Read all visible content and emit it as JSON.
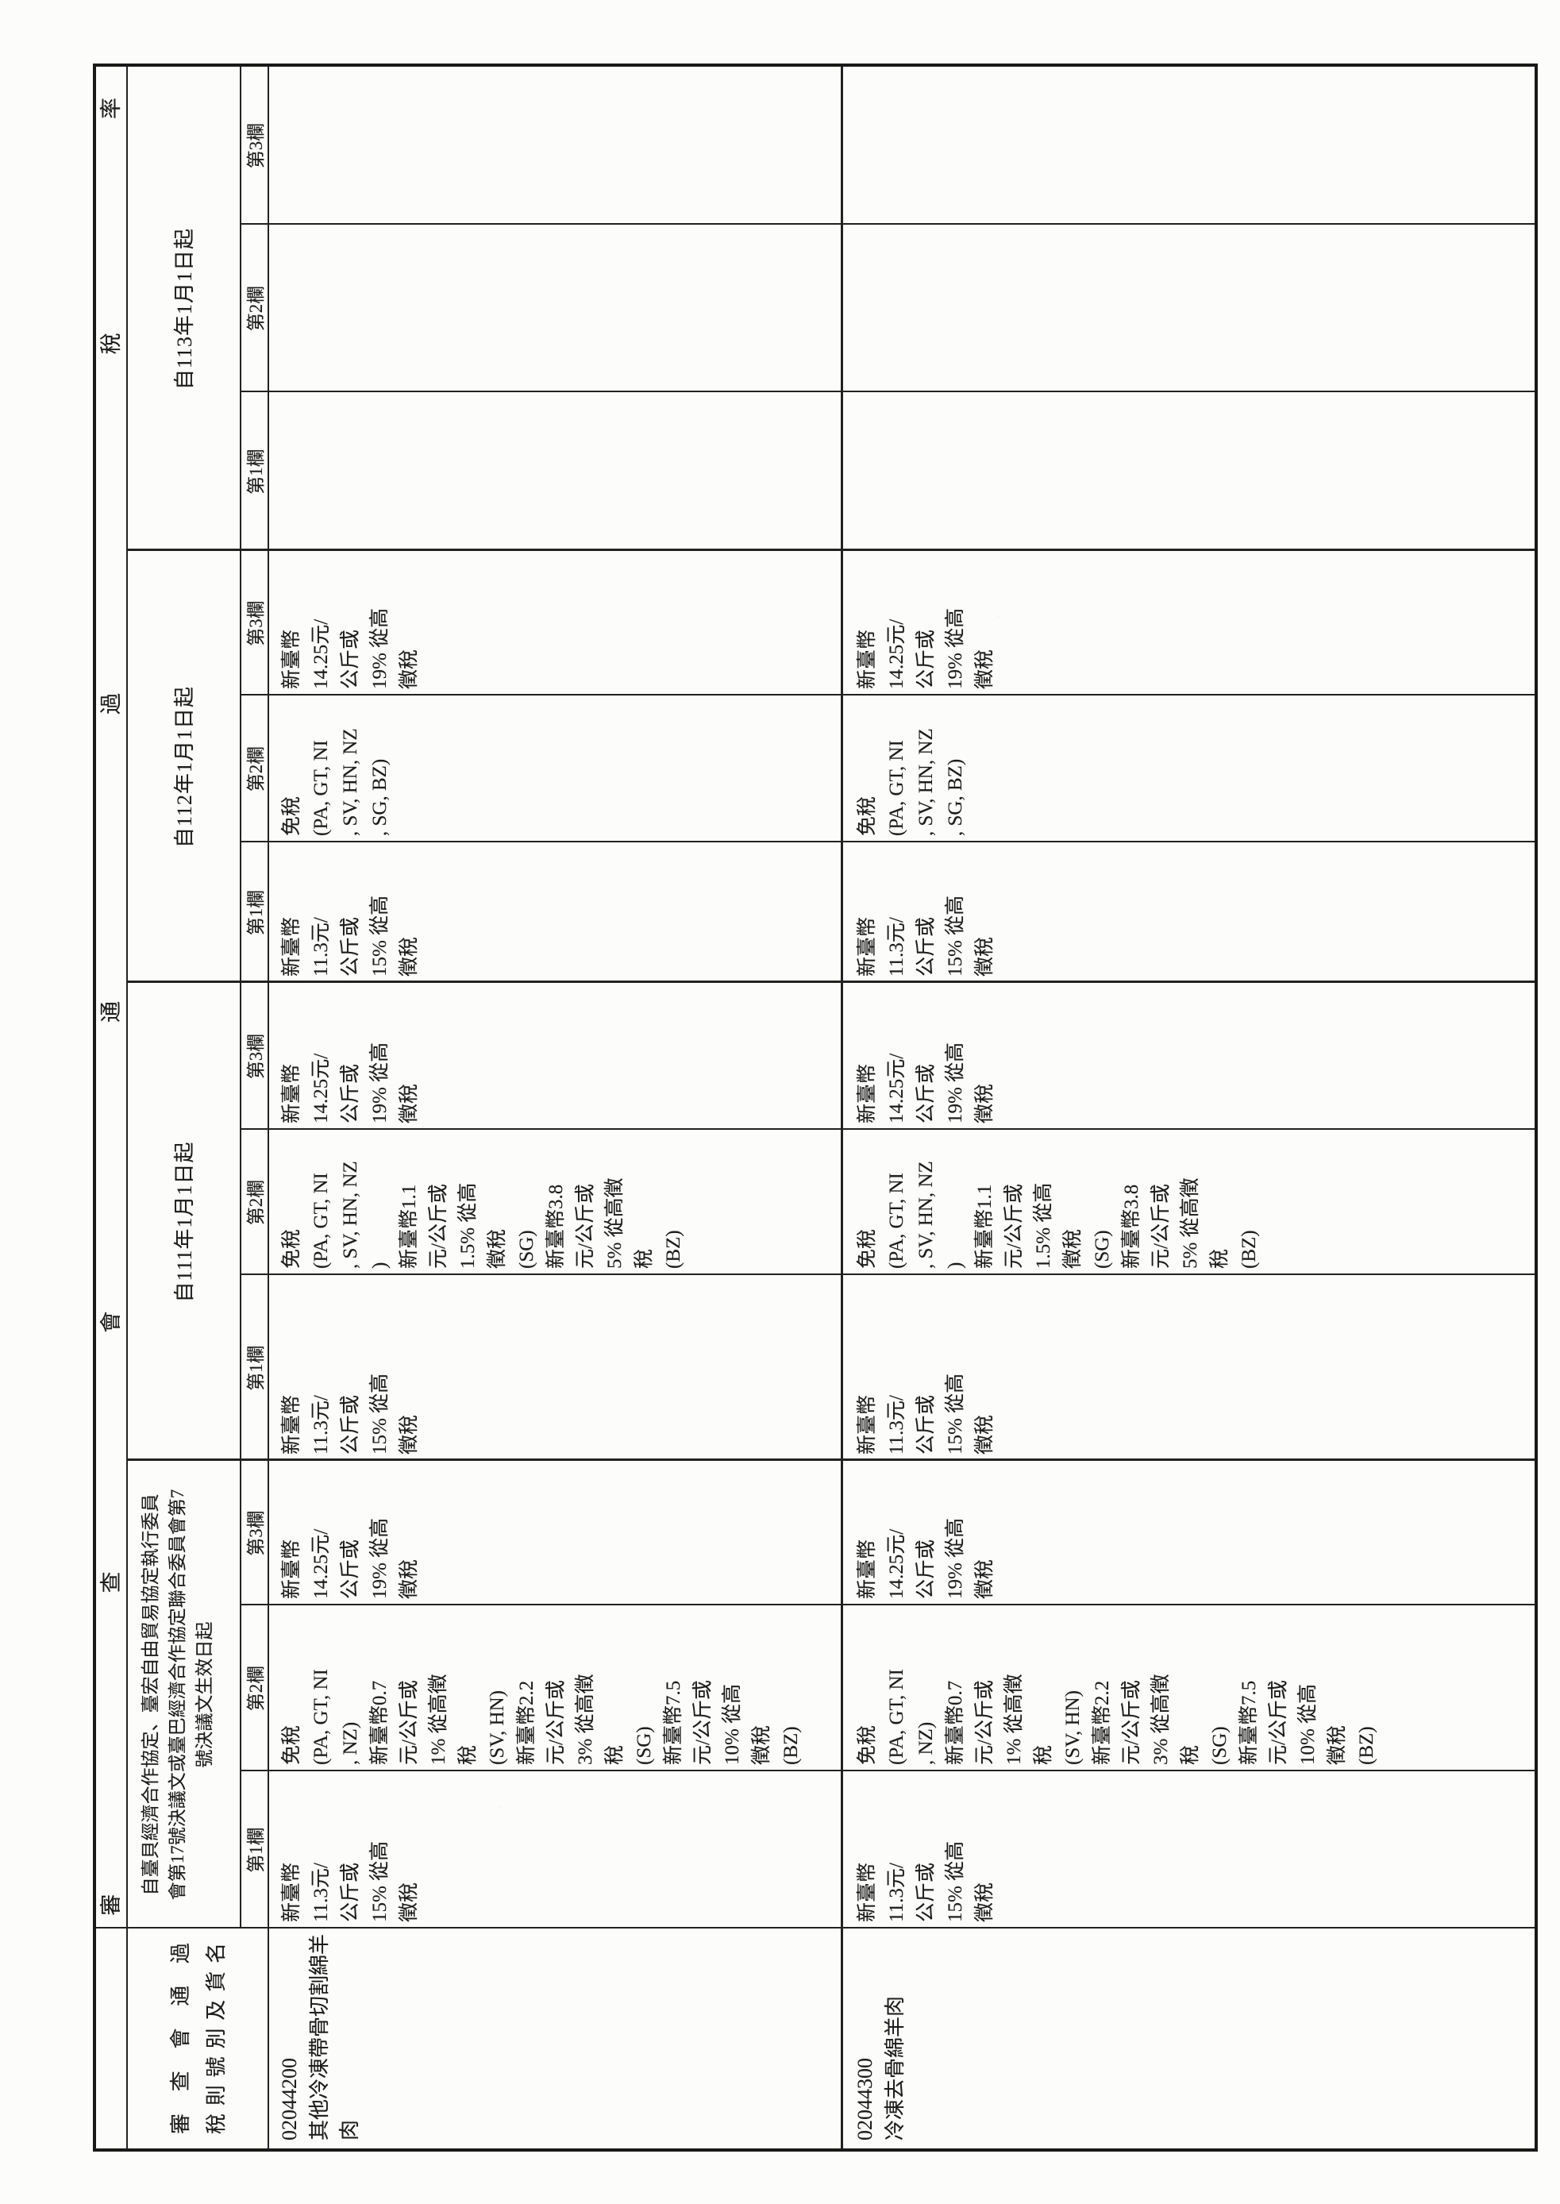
{
  "banner": {
    "chars": [
      "審",
      "查",
      "會",
      "通",
      "過",
      "稅",
      "率"
    ]
  },
  "goods_header": {
    "line1": "審查會通過",
    "line2": "稅則號別及貨名"
  },
  "note": [
    "自臺貝經濟合作協定、臺宏自由貿易協定執行委員",
    "會第17號決議文或臺巴經濟合作協定聯合委員會第7",
    "號決議文生效日起"
  ],
  "year_headers": {
    "y111": "自111年1月1日起",
    "y112": "自112年1月1日起",
    "y113": "自113年1月1日起"
  },
  "column_labels": {
    "c1": "第1欄",
    "c2": "第2欄",
    "c3": "第3欄"
  },
  "rates": {
    "standard_col1": [
      "新臺幣",
      "11.3元/",
      "公斤或",
      "15% 從高",
      "徵稅"
    ],
    "standard_col3": [
      "新臺幣",
      "14.25元/",
      "公斤或",
      "19% 從高",
      "徵稅"
    ],
    "free_agreement_col2": [
      "免稅",
      "(PA, GT, NI",
      ", NZ)",
      "新臺幣0.7",
      "元/公斤或",
      "1% 從高徵",
      "稅",
      "(SV, HN)",
      "新臺幣2.2",
      "元/公斤或",
      "3% 從高徵",
      "稅",
      "(SG)",
      "新臺幣7.5",
      "元/公斤或",
      "10% 從高",
      "徵稅",
      "(BZ)"
    ],
    "free_111_col2": [
      "免稅",
      "(PA, GT, NI",
      ", SV, HN, NZ",
      ")",
      "新臺幣1.1",
      "元/公斤或",
      "1.5% 從高",
      "徵稅",
      "(SG)",
      "新臺幣3.8",
      "元/公斤或",
      "5% 從高徵",
      "稅",
      "(BZ)"
    ],
    "free_112_col2": [
      "免稅",
      "(PA, GT, NI",
      ", SV, HN, NZ",
      ", SG, BZ)"
    ]
  },
  "rows": {
    "row1": {
      "code": "02044200",
      "desc": [
        "其他冷凍帶骨切割綿羊",
        "肉"
      ]
    },
    "row2": {
      "code": "02044300",
      "desc": [
        "冷凍去骨綿羊肉"
      ]
    }
  }
}
